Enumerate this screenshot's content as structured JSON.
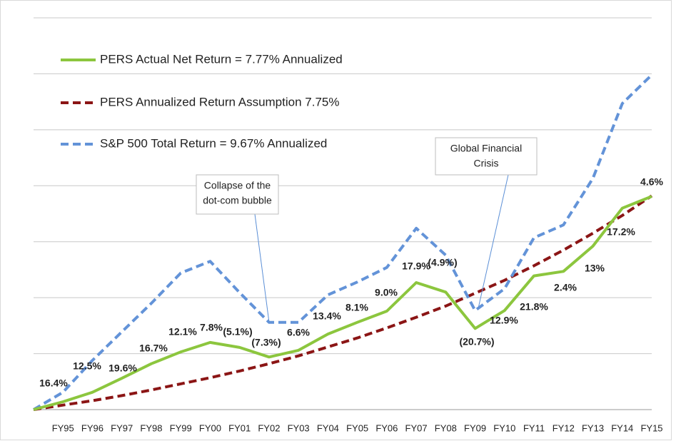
{
  "chart_data": {
    "type": "line",
    "categories": [
      null,
      "FY95",
      "FY96",
      "FY97",
      "FY98",
      "FY99",
      "FY00",
      "FY01",
      "FY02",
      "FY03",
      "FY04",
      "FY05",
      "FY06",
      "FY07",
      "FY08",
      "FY09",
      "FY10",
      "FY11",
      "FY12",
      "FY13",
      "FY14",
      "FY15"
    ],
    "series": [
      {
        "name": "PERS Actual Net Return = 7.77% Annualized",
        "color": "#8cc63e",
        "dash": false,
        "values": [
          0,
          0.14,
          0.31,
          0.56,
          0.82,
          1.03,
          1.2,
          1.11,
          0.94,
          1.06,
          1.35,
          1.56,
          1.76,
          2.27,
          2.1,
          1.45,
          1.77,
          2.39,
          2.47,
          2.92,
          3.6,
          3.81
        ]
      },
      {
        "name": "PERS Annualized Return Assumption 7.75%",
        "color": "#8b1515",
        "dash": true,
        "values": [
          0,
          0.08,
          0.16,
          0.25,
          0.35,
          0.46,
          0.57,
          0.69,
          0.82,
          0.96,
          1.12,
          1.28,
          1.46,
          1.65,
          1.85,
          2.08,
          2.31,
          2.57,
          2.85,
          3.15,
          3.47,
          3.82
        ]
      },
      {
        "name": "S&P 500 Total Return = 9.67% Annualized",
        "color": "#6393d8",
        "dash": true,
        "values": [
          0,
          0.31,
          0.88,
          1.39,
          1.9,
          2.44,
          2.65,
          2.09,
          1.56,
          1.56,
          2.05,
          2.28,
          2.54,
          3.24,
          2.76,
          1.77,
          2.16,
          3.07,
          3.3,
          4.13,
          5.47,
          5.98
        ]
      }
    ],
    "return_labels": [
      null,
      "16.4%",
      "12.5%",
      "19.6%",
      "16.7%",
      "12.1%",
      "7.8%",
      "(5.1%)",
      "(7.3%)",
      "6.6%",
      "13.4%",
      "8.1%",
      "9.0%",
      "17.9%",
      "(4.9%)",
      "(20.7%)",
      "12.9%",
      "21.8%",
      "2.4%",
      "13%",
      "17.2%",
      "4.6%"
    ],
    "annotations": [
      {
        "lines": [
          "Collapse of the",
          "dot-com bubble"
        ]
      },
      {
        "lines": [
          "Global Financial",
          "Crisis"
        ]
      }
    ],
    "ylim": [
      0,
      7
    ],
    "yticks": [
      0,
      1,
      2,
      3,
      4,
      5,
      6,
      7
    ],
    "grid": true,
    "legend": "upper left"
  }
}
